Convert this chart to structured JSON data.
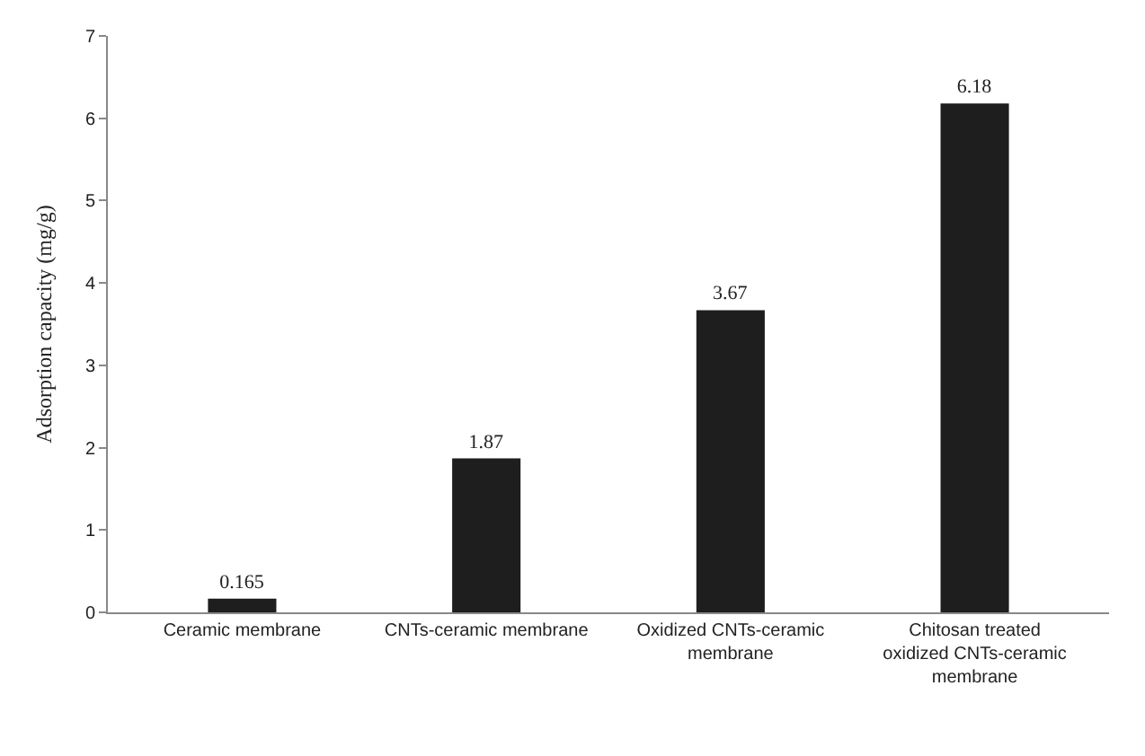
{
  "chart_data": {
    "type": "bar",
    "ylabel": "Adsorption capacity (mg/g)",
    "categories": [
      "Ceramic membrane",
      "CNTs-ceramic membrane",
      "Oxidized CNTs-ceramic membrane",
      "Chitosan treated oxidized CNTs-ceramic membrane"
    ],
    "values": [
      0.165,
      1.87,
      3.67,
      6.18
    ],
    "color": "#1e1e1e",
    "ylim": [
      0,
      7
    ],
    "yticks": [
      0,
      1,
      2,
      3,
      4,
      5,
      6,
      7
    ],
    "data_labels": true
  }
}
